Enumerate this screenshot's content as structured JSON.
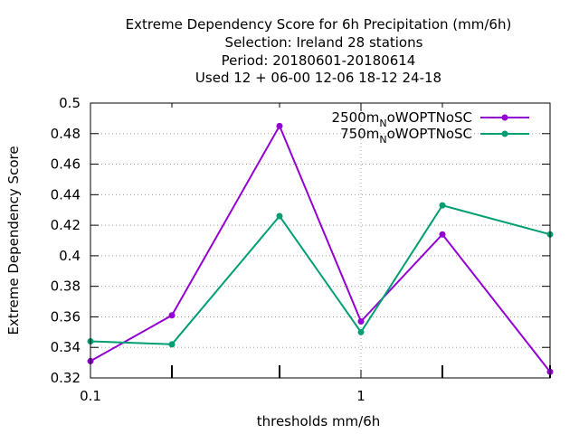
{
  "chart_data": {
    "type": "line",
    "title_lines": [
      "Extreme Dependency Score  for 6h Precipitation (mm/6h)",
      "Selection: Ireland      28 stations",
      "Period: 20180601-20180614",
      "Used  12 + 06-00 12-06 18-12 24-18"
    ],
    "xlabel": "thresholds mm/6h",
    "ylabel": "Extreme Dependency Score",
    "x_scale": "log",
    "xlim": [
      0.1,
      5
    ],
    "ylim": [
      0.32,
      0.5
    ],
    "x_ticks": [
      {
        "value": 0.1,
        "label": "0.1"
      },
      {
        "value": 1,
        "label": "1"
      }
    ],
    "x_minor_ticks": [
      0.2,
      0.5,
      2,
      5
    ],
    "y_ticks": [
      {
        "value": 0.32,
        "label": "0.32"
      },
      {
        "value": 0.34,
        "label": "0.34"
      },
      {
        "value": 0.36,
        "label": "0.36"
      },
      {
        "value": 0.38,
        "label": "0.38"
      },
      {
        "value": 0.4,
        "label": "0.4"
      },
      {
        "value": 0.42,
        "label": "0.42"
      },
      {
        "value": 0.44,
        "label": "0.44"
      },
      {
        "value": 0.46,
        "label": "0.46"
      },
      {
        "value": 0.48,
        "label": "0.48"
      },
      {
        "value": 0.5,
        "label": "0.5"
      }
    ],
    "grid": true,
    "legend_position": "top-right",
    "series": [
      {
        "name_main": "2500m",
        "name_sub": "N",
        "name_rest": "oWOPTNoSC",
        "color": "#9400d3",
        "x": [
          0.1,
          0.2,
          0.5,
          1,
          2,
          5
        ],
        "values": [
          0.331,
          0.361,
          0.485,
          0.357,
          0.414,
          0.324
        ]
      },
      {
        "name_main": "750m",
        "name_sub": "N",
        "name_rest": "oWOPTNoSC",
        "color": "#009e73",
        "x": [
          0.1,
          0.2,
          0.5,
          1,
          2,
          5
        ],
        "values": [
          0.344,
          0.342,
          0.426,
          0.35,
          0.433,
          0.414
        ]
      }
    ]
  }
}
